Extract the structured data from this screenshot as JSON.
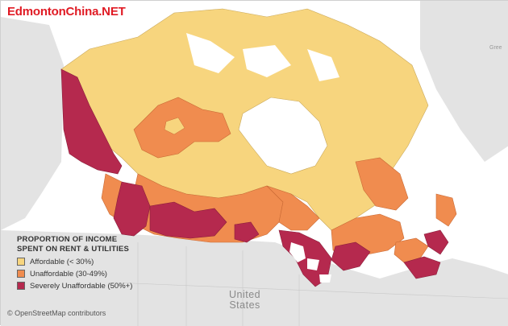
{
  "brand": {
    "text": "EdmontonChina.NET"
  },
  "legend": {
    "title": "PROPORTION OF INCOME\nSPENT ON RENT & UTILITIES",
    "items": [
      {
        "label": "Affordable (< 30%)",
        "color": "#f7d57e"
      },
      {
        "label": "Unaffordable (30-49%)",
        "color": "#f08c4f"
      },
      {
        "label": "Severely Unaffordable (50%+)",
        "color": "#b5294e"
      }
    ]
  },
  "attribution": "© OpenStreetMap contributors",
  "labels": {
    "usa_line1": "United",
    "usa_line2": "States",
    "corner": "Gree"
  },
  "colors": {
    "water": "#ffffff",
    "land_background": "#e3e3e3",
    "us_land": "#d9d9d9",
    "affordable": "#f7d57e",
    "unaffordable": "#f08c4f",
    "severe": "#b5294e"
  }
}
